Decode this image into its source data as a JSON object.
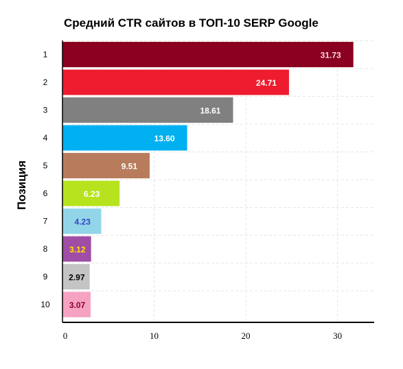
{
  "chart_data": {
    "type": "bar",
    "orientation": "horizontal",
    "title": "Средний CTR сайтов в ТОП-10 SERP Google",
    "ylabel": "Позиция",
    "xlabel": "",
    "categories": [
      "1",
      "2",
      "3",
      "4",
      "5",
      "6",
      "7",
      "8",
      "9",
      "10"
    ],
    "values": [
      31.73,
      24.71,
      18.61,
      13.6,
      9.51,
      6.23,
      4.23,
      3.12,
      2.97,
      3.07
    ],
    "value_labels": [
      "31.73",
      "24.71",
      "18.61",
      "13.60",
      "9.51",
      "6.23",
      "4.23",
      "3.12",
      "2.97",
      "3.07"
    ],
    "bar_colors": [
      "#8b0020",
      "#ee1c2e",
      "#808080",
      "#00b0f0",
      "#b87c5c",
      "#b6e31e",
      "#93d5e8",
      "#a04ea5",
      "#c4c4c4",
      "#f6a2c2"
    ],
    "label_colors": [
      "#f3d7dc",
      "#ffffff",
      "#ffffff",
      "#ffffff",
      "#ffffff",
      "#ffffff",
      "#3347c4",
      "#ffe600",
      "#000000",
      "#8b0028"
    ],
    "xlim": [
      0,
      34
    ],
    "xticks": [
      0,
      10,
      20,
      30
    ],
    "grid": true
  }
}
